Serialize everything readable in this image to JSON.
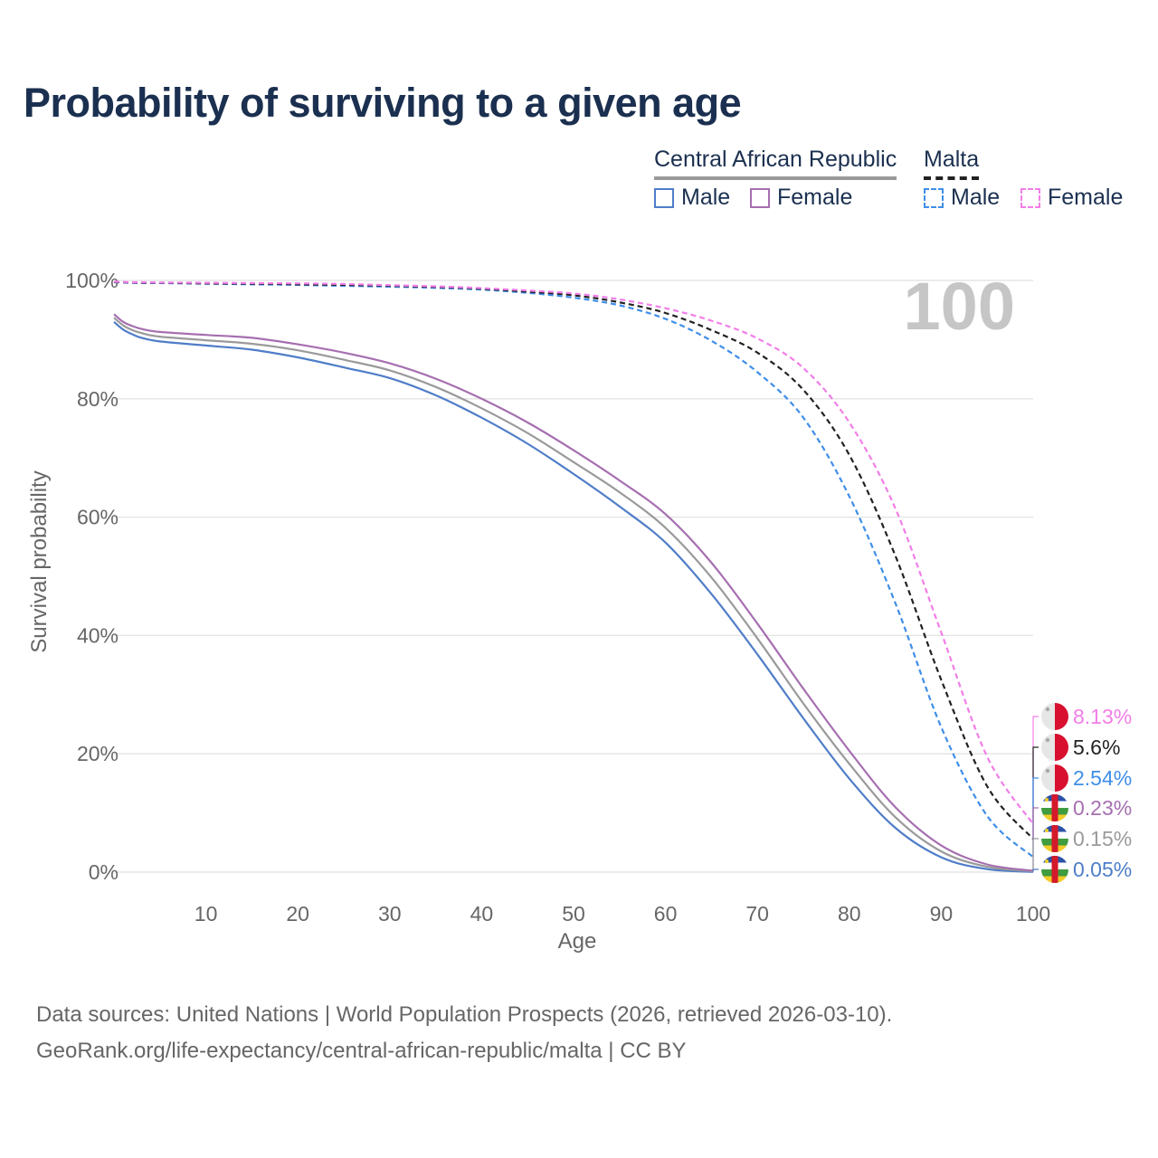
{
  "title": "Probability of surviving to a given age",
  "big_label": "100",
  "legend": {
    "countries": [
      {
        "name": "Central African Republic",
        "style": "solid",
        "color": "#9a9a9a"
      },
      {
        "name": "Malta",
        "style": "dashed",
        "color": "#222222"
      }
    ],
    "items": [
      {
        "label": "Male",
        "country": "Central African Republic",
        "color": "#4f7dc8",
        "style": "solid"
      },
      {
        "label": "Female",
        "country": "Central African Republic",
        "color": "#a66fb0",
        "style": "solid"
      },
      {
        "label": "Male",
        "country": "Malta",
        "color": "#3f8ee8",
        "style": "dashed"
      },
      {
        "label": "Female",
        "country": "Malta",
        "color": "#f27ee8",
        "style": "dashed"
      }
    ]
  },
  "source": {
    "line1": "Data sources: United Nations | World Population Prospects (2026, retrieved 2026-03-10).",
    "line2": "GeoRank.org/life-expectancy/central-african-republic/malta | CC BY"
  },
  "chart_data": {
    "type": "line",
    "title": "Probability of surviving to a given age",
    "xlabel": "Age",
    "ylabel": "Survival probability",
    "xlim": [
      0,
      100
    ],
    "ylim": [
      0,
      100
    ],
    "x_ticks": [
      10,
      20,
      30,
      40,
      50,
      60,
      70,
      80,
      90,
      100
    ],
    "y_ticks": [
      0,
      20,
      40,
      60,
      80,
      100
    ],
    "y_tick_labels": [
      "0%",
      "20%",
      "40%",
      "60%",
      "80%",
      "100%"
    ],
    "grid": true,
    "x": [
      0,
      1,
      2,
      3,
      5,
      10,
      15,
      20,
      25,
      30,
      35,
      40,
      45,
      50,
      55,
      60,
      65,
      70,
      75,
      80,
      85,
      90,
      95,
      100
    ],
    "series": [
      {
        "name": "Malta Female",
        "country": "Malta",
        "sex": "Female",
        "color": "#f27ee8",
        "style": "dashed",
        "end_label": "8.13%",
        "values": [
          99.8,
          99.75,
          99.7,
          99.7,
          99.65,
          99.6,
          99.55,
          99.5,
          99.4,
          99.2,
          99.0,
          98.7,
          98.3,
          97.8,
          96.8,
          95.3,
          93.2,
          90.2,
          85.2,
          76.0,
          61.5,
          40.5,
          19.5,
          8.13
        ]
      },
      {
        "name": "Malta Total",
        "country": "Malta",
        "sex": "Total",
        "color": "#222222",
        "style": "dashed",
        "end_label": "5.6%",
        "values": [
          99.75,
          99.7,
          99.65,
          99.62,
          99.6,
          99.5,
          99.45,
          99.35,
          99.25,
          99.1,
          98.9,
          98.6,
          98.1,
          97.5,
          96.3,
          94.5,
          91.6,
          87.8,
          81.5,
          70.5,
          53.5,
          32.5,
          14.5,
          5.6
        ]
      },
      {
        "name": "Malta Male",
        "country": "Malta",
        "sex": "Male",
        "color": "#3f8ee8",
        "style": "dashed",
        "end_label": "2.54%",
        "values": [
          99.7,
          99.65,
          99.6,
          99.57,
          99.55,
          99.45,
          99.35,
          99.25,
          99.1,
          98.95,
          98.75,
          98.45,
          97.9,
          97.1,
          95.8,
          93.5,
          89.8,
          84.5,
          76.8,
          63.5,
          45.5,
          24.5,
          9.5,
          2.54
        ]
      },
      {
        "name": "Central African Republic Female",
        "country": "Central African Republic",
        "sex": "Female",
        "color": "#a66fb0",
        "style": "solid",
        "end_label": "0.23%",
        "values": [
          94.3,
          93.0,
          92.3,
          91.8,
          91.3,
          90.8,
          90.3,
          89.2,
          87.8,
          86.0,
          83.4,
          80.0,
          76.0,
          71.3,
          66.2,
          60.5,
          52.3,
          42.0,
          31.0,
          20.5,
          11.0,
          4.5,
          1.3,
          0.23
        ]
      },
      {
        "name": "Central African Republic Total",
        "country": "Central African Republic",
        "sex": "Total",
        "color": "#9a9a9a",
        "style": "solid",
        "end_label": "0.15%",
        "values": [
          93.7,
          92.4,
          91.6,
          91.1,
          90.5,
          89.9,
          89.3,
          88.2,
          86.6,
          84.8,
          82.0,
          78.4,
          74.2,
          69.3,
          64.2,
          58.2,
          49.8,
          39.5,
          28.5,
          18.3,
          9.3,
          3.5,
          0.9,
          0.15
        ]
      },
      {
        "name": "Central African Republic Male",
        "country": "Central African Republic",
        "sex": "Male",
        "color": "#4f7dc8",
        "style": "solid",
        "end_label": "0.05%",
        "values": [
          93.0,
          91.7,
          90.9,
          90.3,
          89.7,
          89.0,
          88.3,
          87.0,
          85.3,
          83.5,
          80.6,
          76.8,
          72.4,
          67.3,
          61.8,
          55.7,
          47.0,
          36.8,
          26.0,
          15.8,
          7.5,
          2.5,
          0.5,
          0.05
        ]
      }
    ]
  }
}
